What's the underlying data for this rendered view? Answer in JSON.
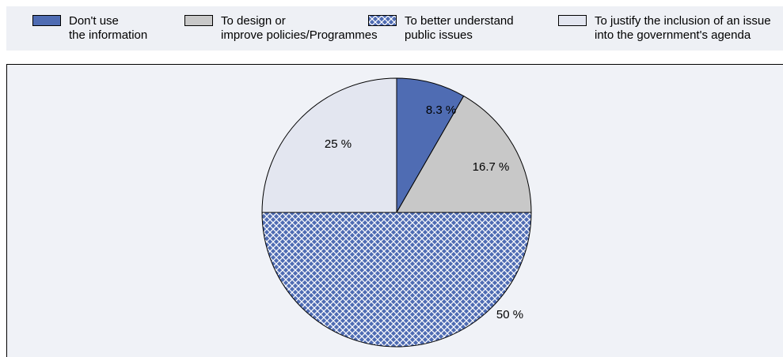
{
  "legend": [
    {
      "label": "Don't use\nthe information",
      "color": "#4f6cb3",
      "pattern": "solid"
    },
    {
      "label": "To design or\nimprove policies/Programmes",
      "color": "#c8c8c8",
      "pattern": "solid"
    },
    {
      "label": "To better understand\npublic issues",
      "color": "#4f6cb3",
      "pattern": "crosshatch"
    },
    {
      "label": "To justify the inclusion of an issue\ninto the government's agenda",
      "color": "#e3e6f0",
      "pattern": "solid"
    }
  ],
  "chart_data": {
    "type": "pie",
    "categories": [
      "Don't use the information",
      "To design or improve policies/Programmes",
      "To better understand public issues",
      "To justify the inclusion of an issue into the government's agenda"
    ],
    "values": [
      8.3,
      16.7,
      50,
      25
    ],
    "labels": [
      "8.3 %",
      "16.7 %",
      "50 %",
      "25 %"
    ],
    "colors": [
      "#4f6cb3",
      "#c8c8c8",
      "#4f6cb3",
      "#e3e6f0"
    ],
    "patterns": [
      "solid",
      "solid",
      "crosshatch",
      "solid"
    ],
    "start": "12 o'clock",
    "direction": "clockwise",
    "legend_position": "top"
  }
}
